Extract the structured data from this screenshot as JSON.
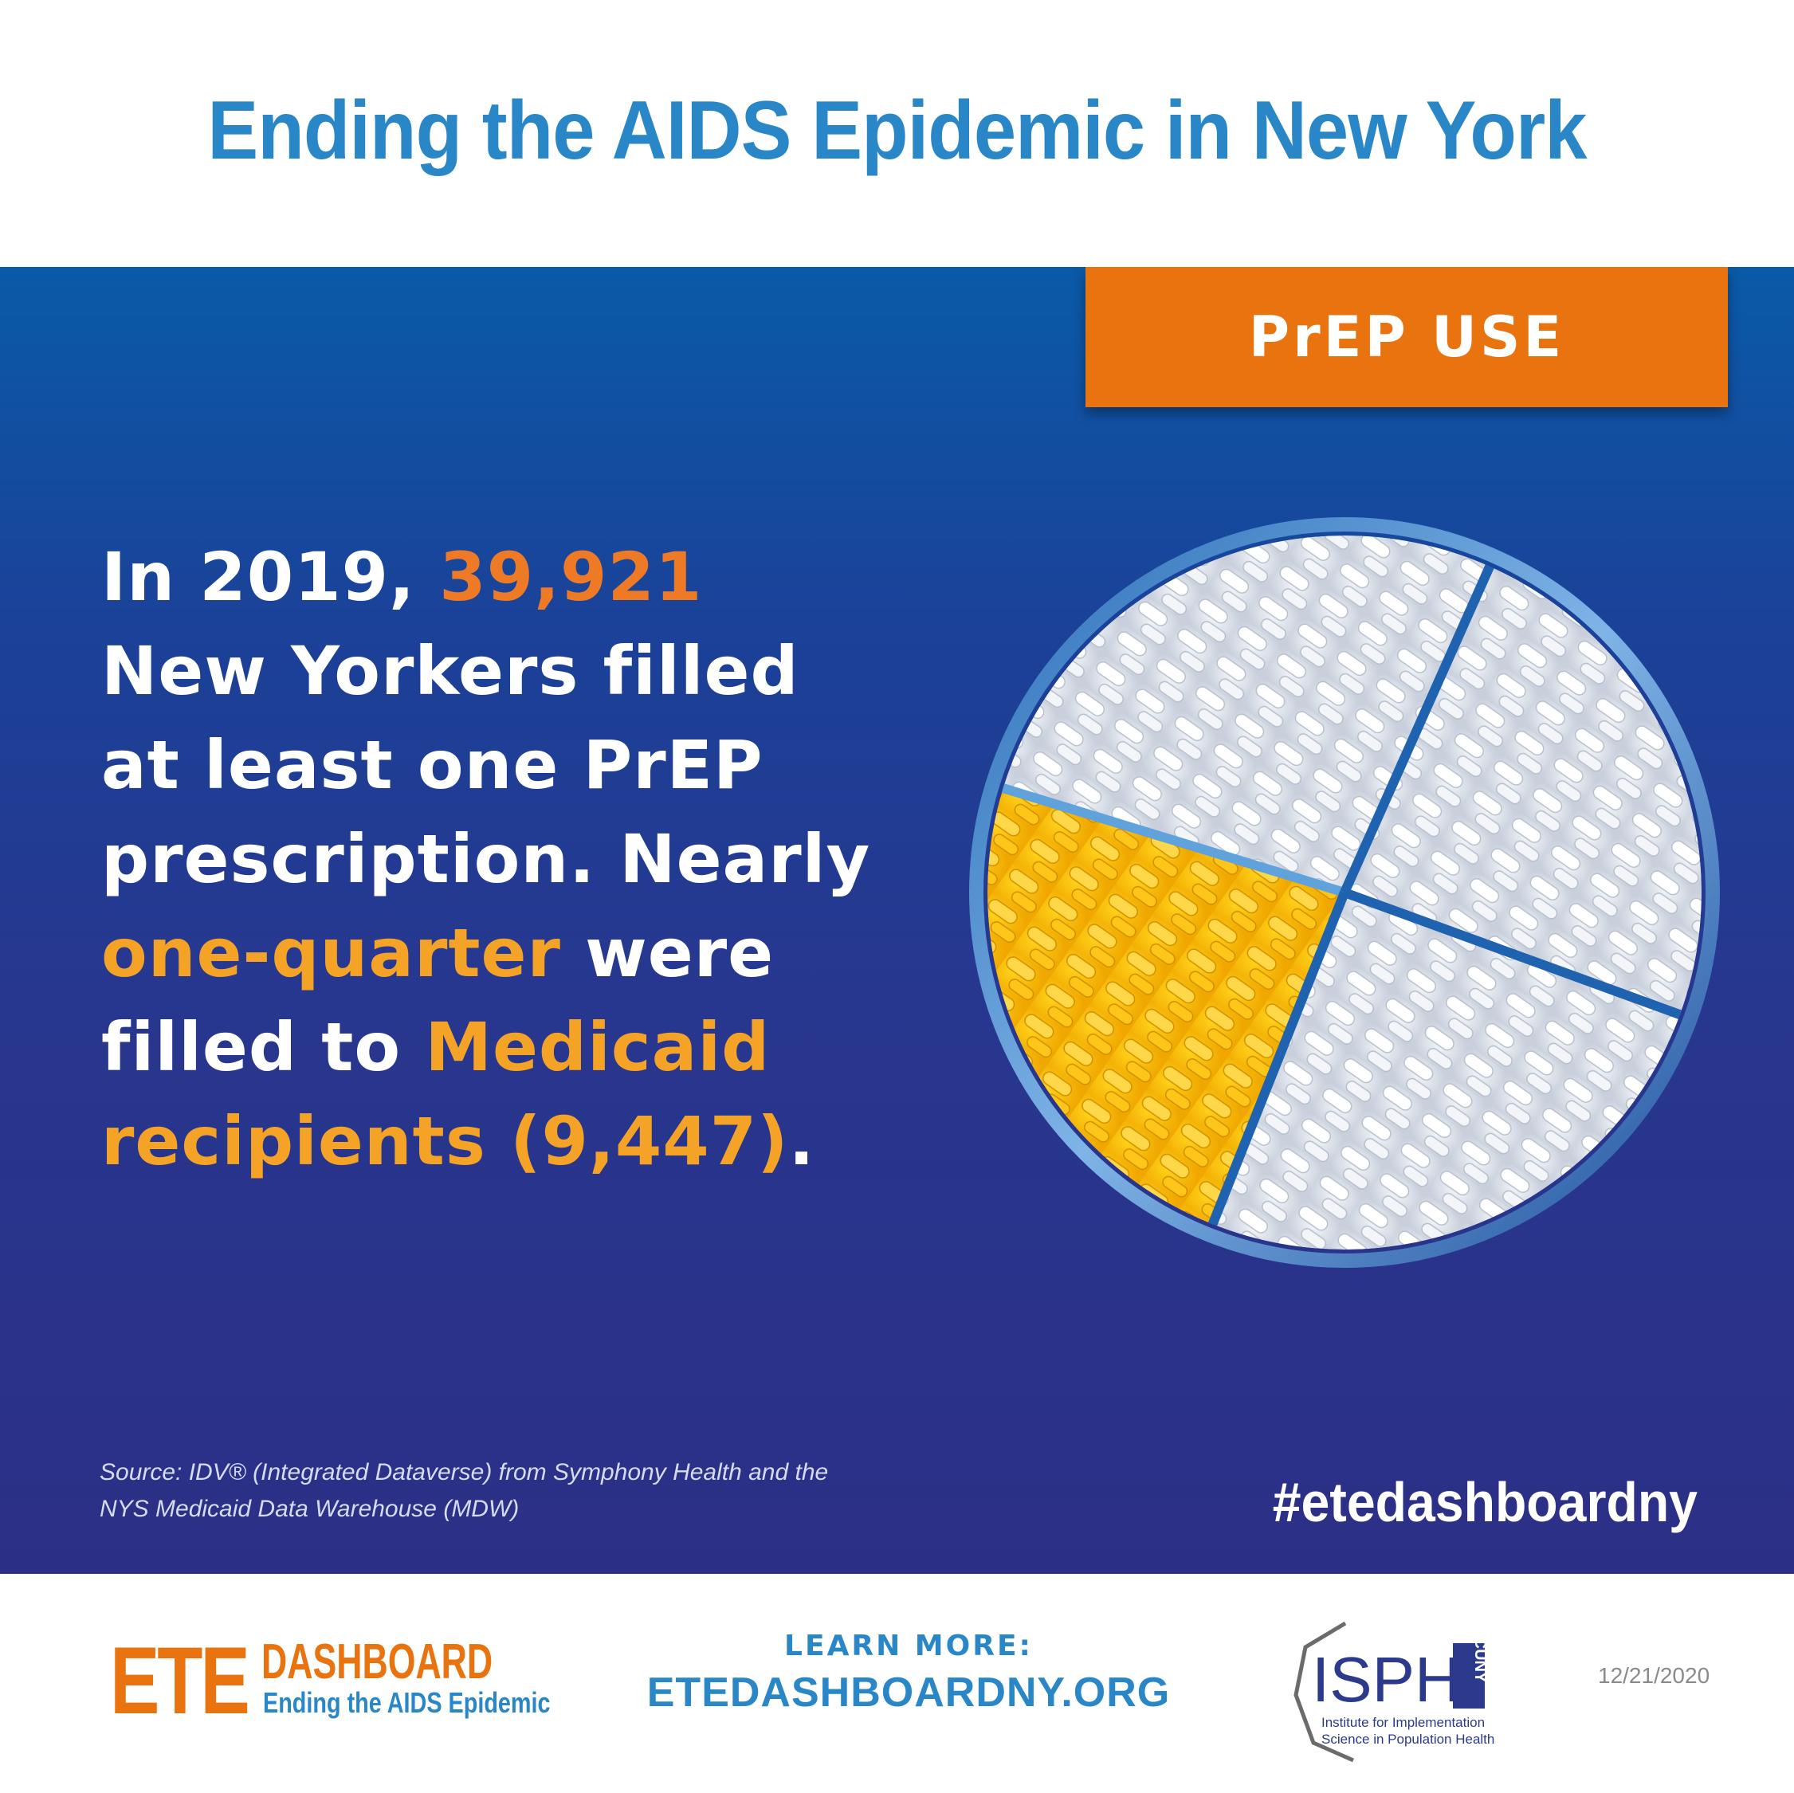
{
  "header": {
    "title": "Ending the AIDS Epidemic in New York"
  },
  "badge": {
    "label": "PrEP USE"
  },
  "statement": {
    "line1_prefix": "In 2019, ",
    "count": "39,921",
    "line2": "New Yorkers filled",
    "line3": "at least one PrEP",
    "line4": "prescription. Nearly",
    "fraction": "one-quarter",
    "line5_suffix": " were",
    "line6_prefix": "filled to ",
    "medicaid": "Medicaid",
    "recipients": "recipients (9,447)",
    "period": "."
  },
  "pie": {
    "highlight_fraction": 0.237,
    "highlight_color": "#f5b800",
    "other_color": "#e8ecf2",
    "divider_color": "#1f63b0"
  },
  "source": {
    "line1": "Source: IDV® (Integrated Dataverse) from Symphony Health and the",
    "line2": "NYS Medicaid Data Warehouse (MDW)"
  },
  "hashtag": "#etedashboardny",
  "footer": {
    "ete_logo": {
      "big": "ETE",
      "dashboard": "DASHBOARD",
      "subtitle": "Ending the AIDS Epidemic"
    },
    "learn_more_label": "LEARN MORE:",
    "learn_more_url": "ETEDASHBOARDNY.ORG",
    "isph_logo": {
      "main": "ISPH",
      "cuny": "CUNY",
      "line1": "Institute for Implementation",
      "line2": "Science in Population Health"
    },
    "date": "12/21/2020"
  },
  "colors": {
    "title_blue": "#2a87c7",
    "badge_orange": "#e8730f",
    "accent_orange": "#ef7a26",
    "accent_gold": "#f4a326",
    "panel_navy": "#2c2f86"
  }
}
